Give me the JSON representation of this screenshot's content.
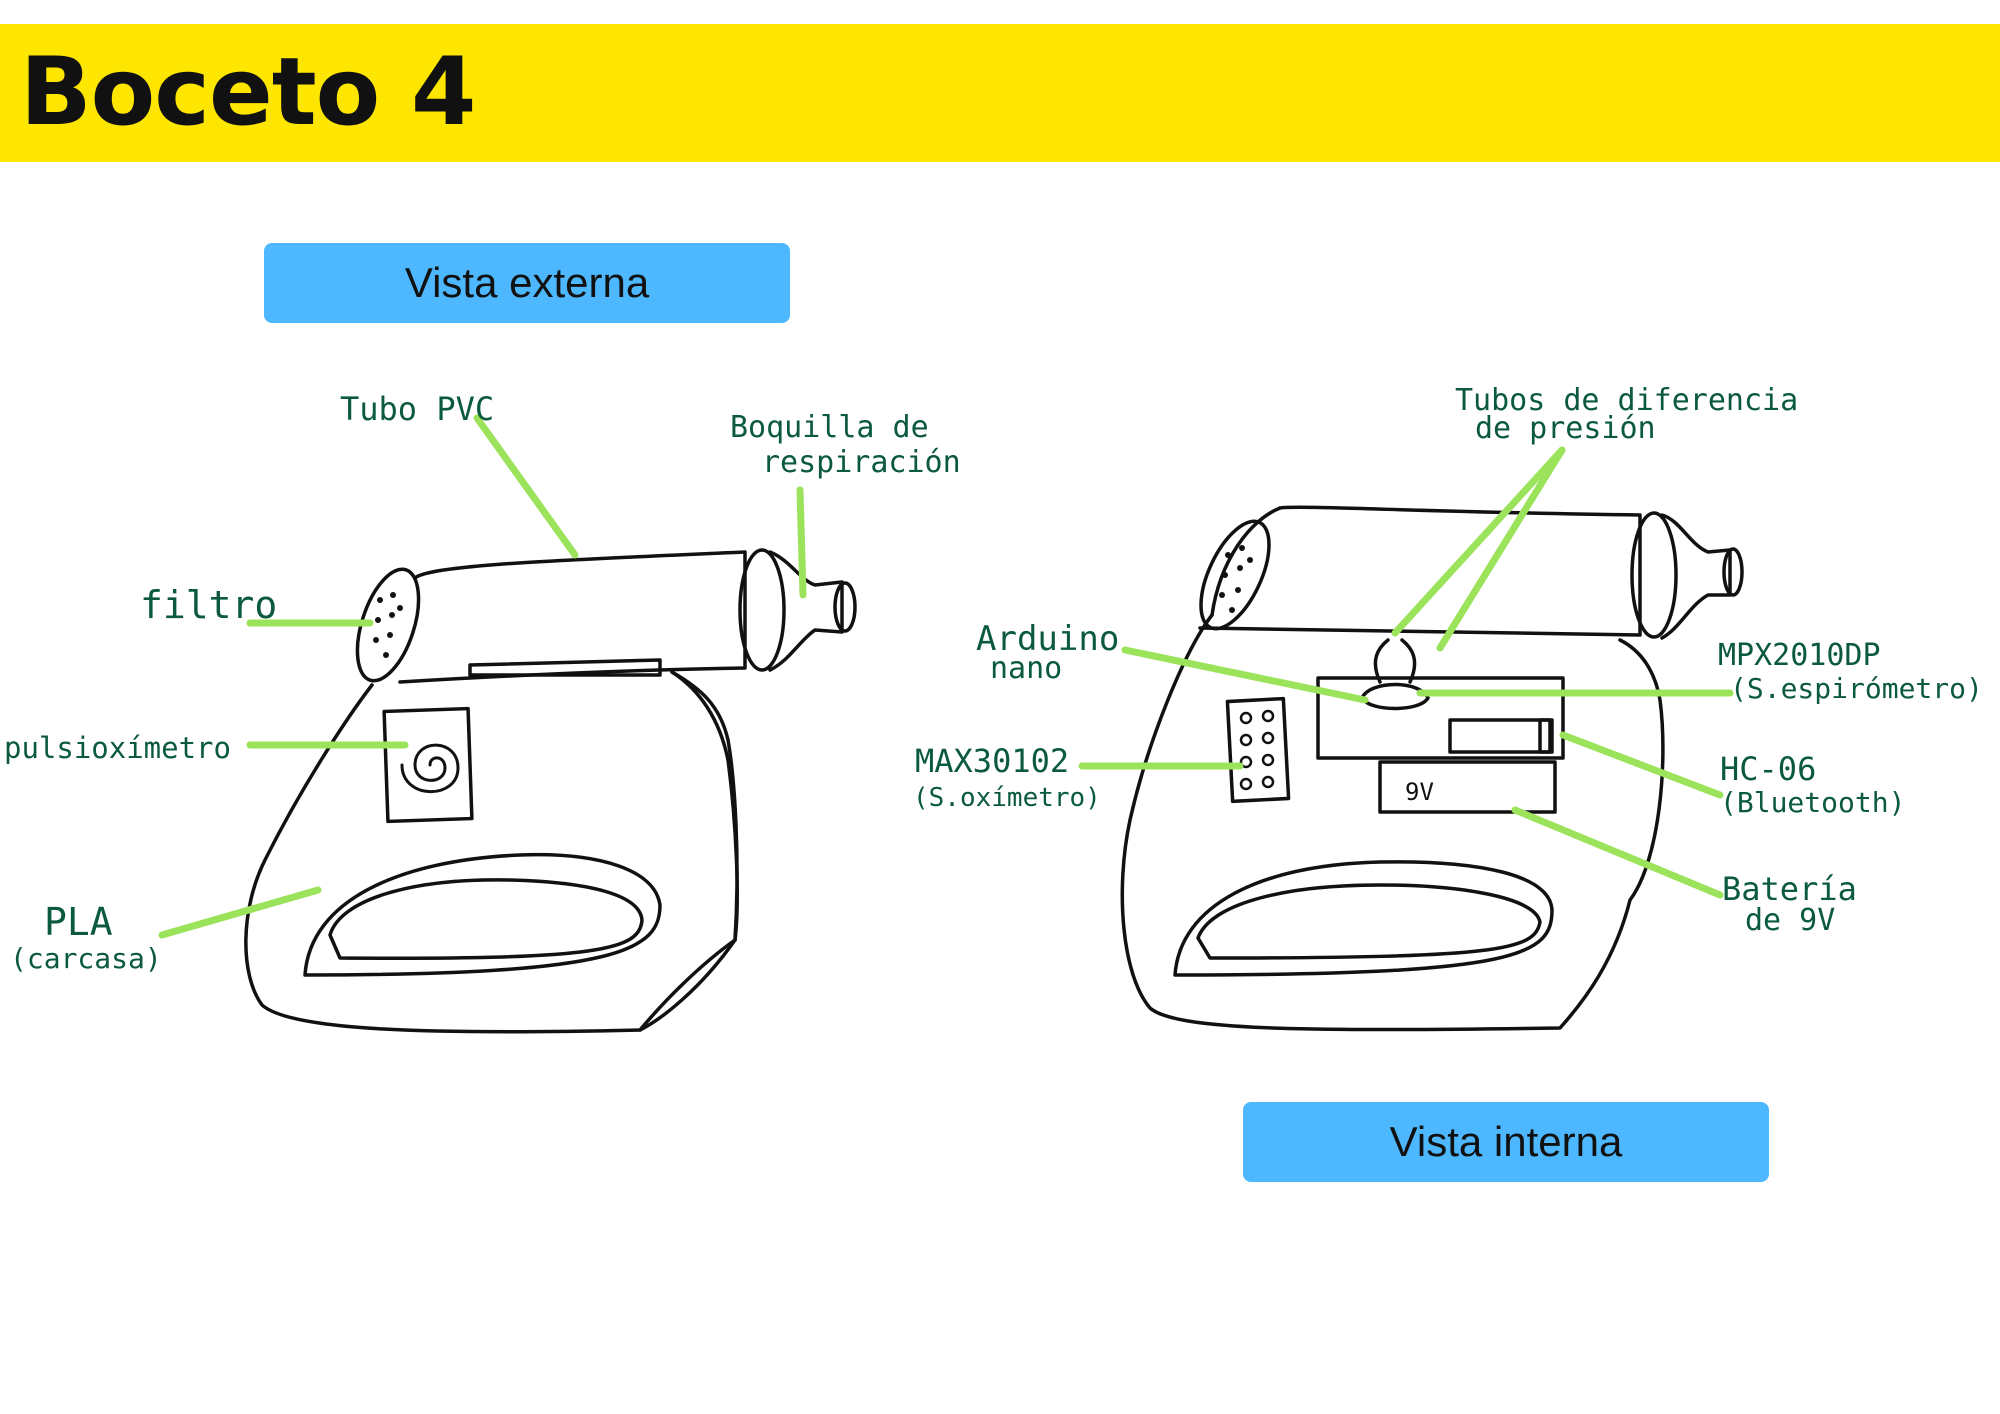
{
  "header": {
    "title": "Boceto 4"
  },
  "views": {
    "external": "Vista externa",
    "internal": "Vista interna"
  },
  "labels": {
    "tubo_pvc": "Tubo   PVC",
    "boquilla_1": "Boquilla de",
    "boquilla_2": "respiración",
    "filtro": "filtro",
    "pulsioximetro": "pulsioxímetro",
    "pla_1": "PLA",
    "pla_2": "(carcasa)",
    "tubos_1": "Tubos  de  diferencia",
    "tubos_2": "de  presión",
    "arduino_1": "Arduino",
    "arduino_2": "nano",
    "mpx_1": "MPX2010DP",
    "mpx_2": "(S.espirómetro)",
    "max_1": "MAX30102",
    "max_2": "(S.oxímetro)",
    "hc_1": "HC-06",
    "hc_2": "(Bluetooth)",
    "bat_1": "Batería",
    "bat_2": "de 9V",
    "battery_mark": "9V"
  },
  "colors": {
    "header_band": "#FFE600",
    "pill": "#4DB8FF",
    "leader_line": "#9BE35A",
    "ink": "#111111",
    "label_ink": "#0B5A3E"
  }
}
